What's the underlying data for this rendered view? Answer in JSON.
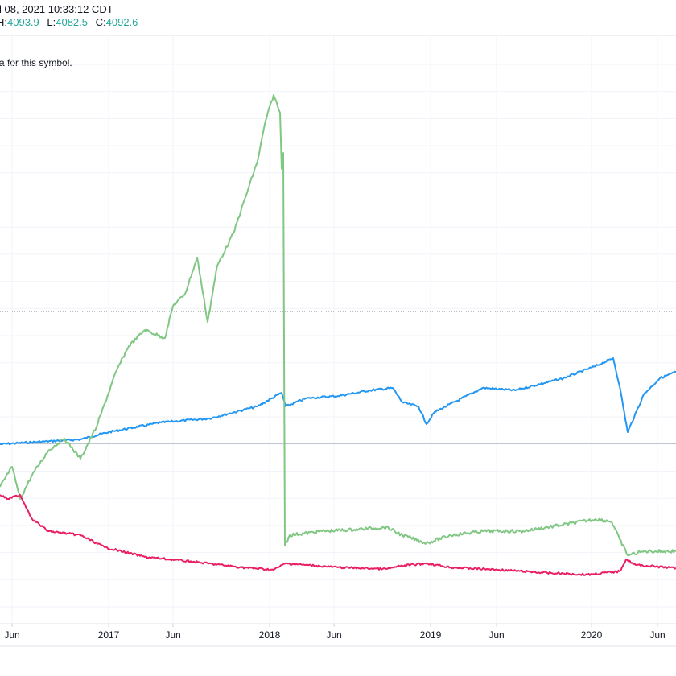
{
  "header": {
    "datetime": "l 08, 2021 10:33:12 CDT",
    "h_label": "H:",
    "h": "4093.9",
    "l_label": "L:",
    "l": "4082.5",
    "c_label": "C:",
    "c": "4092.6"
  },
  "notice": "a for this symbol.",
  "chart_data": {
    "type": "line",
    "title": "",
    "xlabel": "",
    "ylabel": "",
    "x_ticks": [
      {
        "t": 2016.4,
        "label": "Jun"
      },
      {
        "t": 2017.0,
        "label": "2017"
      },
      {
        "t": 2017.4,
        "label": "Jun"
      },
      {
        "t": 2018.0,
        "label": "2018"
      },
      {
        "t": 2018.4,
        "label": "Jun"
      },
      {
        "t": 2019.0,
        "label": "2019"
      },
      {
        "t": 2019.41,
        "label": "Jun"
      },
      {
        "t": 2020.0,
        "label": "2020"
      },
      {
        "t": 2020.41,
        "label": "Jun"
      }
    ],
    "xlim": [
      2016.325,
      2020.525
    ],
    "ylim": [
      -144.5,
      275.5
    ],
    "baseline": 0,
    "dotted_level": 82,
    "series": [
      {
        "name": "blue",
        "color": "#2196f3",
        "x": [
          2016.325,
          2016.825,
          2017.0,
          2017.325,
          2017.625,
          2017.925,
          2018.075,
          2018.1,
          2018.225,
          2018.425,
          2018.625,
          2018.765,
          2018.825,
          2018.925,
          2018.975,
          2019.025,
          2019.325,
          2019.525,
          2019.825,
          2020.025,
          2020.135,
          2020.175,
          2020.225,
          2020.325,
          2020.425,
          2020.525
        ],
        "values": [
          -0.5,
          2.5,
          7,
          13,
          15.5,
          23,
          31.5,
          23,
          28,
          29.5,
          33,
          34.5,
          25.5,
          23,
          12,
          19.5,
          34.5,
          33,
          40.5,
          48,
          53,
          35.5,
          7,
          30.5,
          40.5,
          44.5
        ]
      },
      {
        "name": "green",
        "color": "#81c784",
        "x": [
          2016.325,
          2016.4,
          2016.45,
          2016.525,
          2016.625,
          2016.725,
          2016.825,
          2016.925,
          2017.05,
          2017.125,
          2017.225,
          2017.35,
          2017.4,
          2017.475,
          2017.55,
          2017.615,
          2017.675,
          2017.775,
          2017.85,
          2017.925,
          2017.975,
          2018.025,
          2018.065,
          2018.075,
          2018.085,
          2018.095,
          2018.125,
          2018.325,
          2018.525,
          2018.725,
          2018.825,
          2018.975,
          2019.125,
          2019.325,
          2019.575,
          2019.825,
          2020.025,
          2020.125,
          2020.175,
          2020.225,
          2020.325,
          2020.525
        ],
        "values": [
          -27,
          -14.5,
          -34.5,
          -19.5,
          -4.5,
          3,
          -9.5,
          10.5,
          45.5,
          60.5,
          70.5,
          65.5,
          85.5,
          93,
          115.5,
          75.5,
          110.5,
          130.5,
          153,
          175.5,
          200.5,
          216.5,
          205.5,
          170.5,
          180.5,
          -63.5,
          -57,
          -54.5,
          -53.5,
          -52,
          -57,
          -62,
          -57,
          -54.5,
          -54.5,
          -50.5,
          -47,
          -48.5,
          -59.5,
          -69.5,
          -67,
          -67
        ]
      },
      {
        "name": "red",
        "color": "#e91e63",
        "x": [
          2016.325,
          2016.375,
          2016.45,
          2016.525,
          2016.625,
          2016.825,
          2016.975,
          2017.225,
          2017.525,
          2017.825,
          2018.025,
          2018.1,
          2018.225,
          2018.425,
          2018.725,
          2018.825,
          2018.975,
          2019.125,
          2019.425,
          2019.725,
          2019.975,
          2020.175,
          2020.215,
          2020.275,
          2020.525
        ],
        "values": [
          -32,
          -34.5,
          -32,
          -47,
          -54.5,
          -57,
          -64.5,
          -70.5,
          -73.5,
          -77,
          -78.5,
          -74.5,
          -75.5,
          -77,
          -78,
          -76,
          -74.5,
          -77,
          -78.5,
          -80.5,
          -81.5,
          -79.5,
          -72,
          -75.5,
          -77.5
        ]
      }
    ]
  }
}
